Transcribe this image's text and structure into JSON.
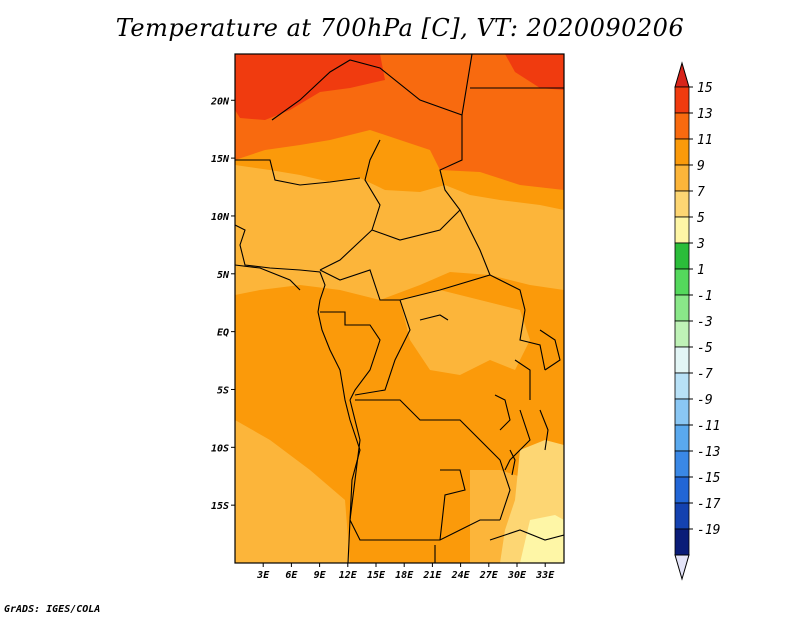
{
  "title": "Temperature at 700hPa [C], VT: 2020090206",
  "credit": "GrADS: IGES/COLA",
  "map": {
    "lon_range": [
      0,
      35
    ],
    "lat_range": [
      -20,
      24
    ],
    "lon_ticks": [
      {
        "v": 3,
        "label": "3E"
      },
      {
        "v": 6,
        "label": "6E"
      },
      {
        "v": 9,
        "label": "9E"
      },
      {
        "v": 12,
        "label": "12E"
      },
      {
        "v": 15,
        "label": "15E"
      },
      {
        "v": 18,
        "label": "18E"
      },
      {
        "v": 21,
        "label": "21E"
      },
      {
        "v": 24,
        "label": "24E"
      },
      {
        "v": 27,
        "label": "27E"
      },
      {
        "v": 30,
        "label": "30E"
      },
      {
        "v": 33,
        "label": "33E"
      }
    ],
    "lat_ticks": [
      {
        "v": 20,
        "label": "20N"
      },
      {
        "v": 15,
        "label": "15N"
      },
      {
        "v": 10,
        "label": "10N"
      },
      {
        "v": 5,
        "label": "5N"
      },
      {
        "v": 0,
        "label": "EQ"
      },
      {
        "v": -5,
        "label": "5S"
      },
      {
        "v": -10,
        "label": "10S"
      },
      {
        "v": -15,
        "label": "15S"
      }
    ]
  },
  "colorbar": {
    "levels": [
      "15",
      "13",
      "11",
      "9",
      "7",
      "5",
      "3",
      "1",
      "-1",
      "-3",
      "-5",
      "-7",
      "-9",
      "-11",
      "-13",
      "-15",
      "-17",
      "-19"
    ],
    "colors": [
      "#f03b0f",
      "#f86a0f",
      "#fb9a0a",
      "#fcb53a",
      "#fdd673",
      "#fef6a6",
      "#2bbd3a",
      "#54d85c",
      "#8ae889",
      "#bff2b7",
      "#e3f6f6",
      "#b8e1f7",
      "#8ac7f4",
      "#5aa9ee",
      "#3a88e6",
      "#2266d6",
      "#1442b0",
      "#0a1c78"
    ],
    "top_arrow_color": "#d8241a",
    "bottom_arrow_color": "#e4e4f8"
  }
}
